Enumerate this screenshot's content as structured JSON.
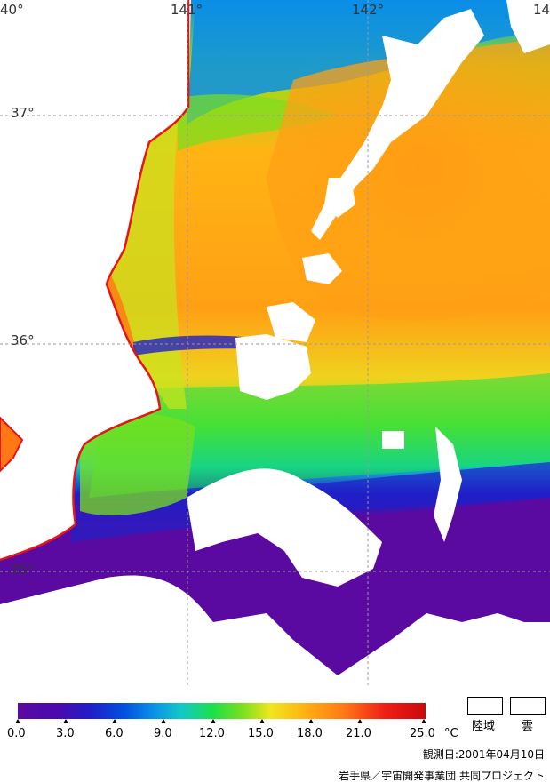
{
  "map": {
    "lon_labels": [
      "40°",
      "141°",
      "142°",
      "14"
    ],
    "lat_labels": [
      "37°",
      "36°",
      "35°"
    ]
  },
  "legend": {
    "ticks": [
      "0.0",
      "3.0",
      "6.0",
      "9.0",
      "12.0",
      "15.0",
      "18.0",
      "21.0",
      "25.0"
    ],
    "unit": "°C",
    "land_label": "陸域",
    "cloud_label": "雲",
    "colors": [
      "#5a0aa0",
      "#1f1fc8",
      "#0a8ee8",
      "#12c8c8",
      "#1ee048",
      "#f0e61e",
      "#ffb414",
      "#ff7814",
      "#c80a0a"
    ]
  },
  "footer": {
    "date": "観測日:2001年04月10日",
    "credit": "岩手県／宇宙開発事業団 共同プロジェクト"
  }
}
